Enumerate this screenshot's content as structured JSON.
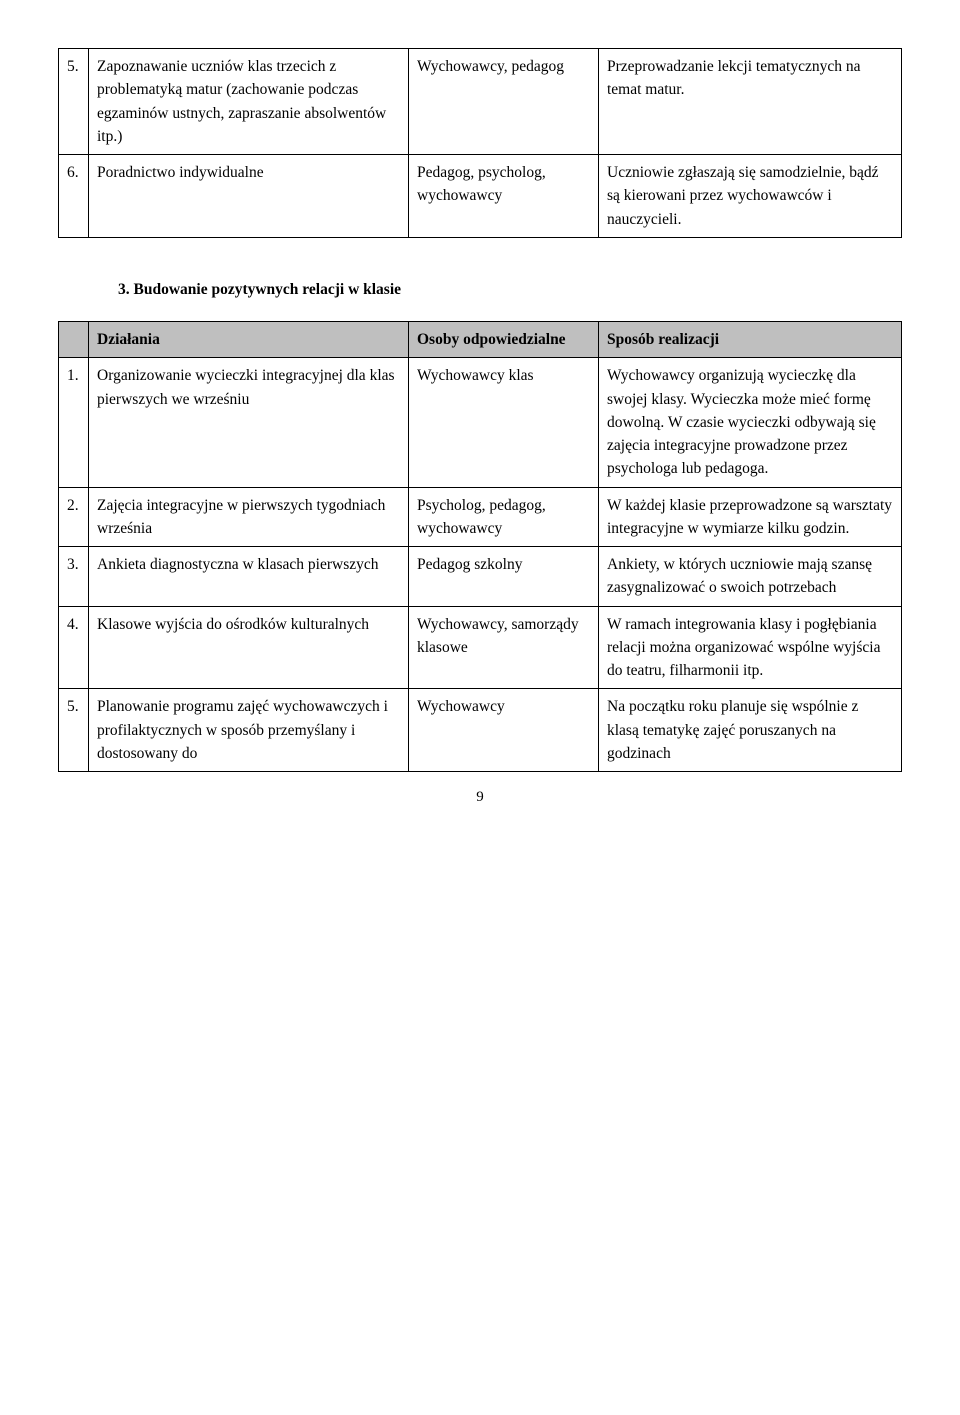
{
  "colors": {
    "header_bg": "#bfbfbf",
    "border": "#000000",
    "text": "#000000",
    "page_bg": "#ffffff"
  },
  "table1": {
    "rows": [
      {
        "num": "5.",
        "action": "Zapoznawanie uczniów klas trzecich z problematyką matur (zachowanie podczas egzaminów ustnych, zapraszanie absolwentów itp.)",
        "resp": "Wychowawcy, pedagog",
        "how": "Przeprowadzanie lekcji tematycznych na temat matur."
      },
      {
        "num": "6.",
        "action": "Poradnictwo indywidualne",
        "resp": "Pedagog, psycholog, wychowawcy",
        "how": "Uczniowie zgłaszają się samodzielnie, bądź są kierowani przez wychowawców i nauczycieli."
      }
    ]
  },
  "section3": {
    "heading": "3. Budowanie pozytywnych relacji w klasie",
    "headers": {
      "action": "Działania",
      "resp": "Osoby odpowiedzialne",
      "how": "Sposób realizacji"
    },
    "rows": [
      {
        "num": "1.",
        "action": "Organizowanie wycieczki integracyjnej dla klas pierwszych we wrześniu",
        "resp": "Wychowawcy klas",
        "how": "Wychowawcy organizują wycieczkę dla swojej klasy. Wycieczka może mieć formę dowolną. W czasie wycieczki odbywają się zajęcia integracyjne prowadzone przez psychologa lub pedagoga."
      },
      {
        "num": "2.",
        "action": "Zajęcia integracyjne w pierwszych tygodniach września",
        "resp": "Psycholog, pedagog, wychowawcy",
        "how": "W każdej klasie przeprowadzone są warsztaty integracyjne w wymiarze kilku godzin."
      },
      {
        "num": "3.",
        "action": "Ankieta diagnostyczna w klasach pierwszych",
        "resp": "Pedagog szkolny",
        "how": "Ankiety, w których uczniowie mają szansę zasygnalizować o swoich potrzebach"
      },
      {
        "num": "4.",
        "action": "Klasowe wyjścia do ośrodków kulturalnych",
        "resp": "Wychowawcy, samorządy klasowe",
        "how": "W ramach integrowania klasy i pogłębiania relacji można organizować wspólne wyjścia do teatru, filharmonii itp."
      },
      {
        "num": "5.",
        "action": "Planowanie programu zajęć wychowawczych i profilaktycznych w sposób przemyślany i dostosowany do",
        "resp": "Wychowawcy",
        "how": "Na początku roku planuje się wspólnie z klasą tematykę zajęć poruszanych na godzinach"
      }
    ]
  },
  "page_number": "9"
}
